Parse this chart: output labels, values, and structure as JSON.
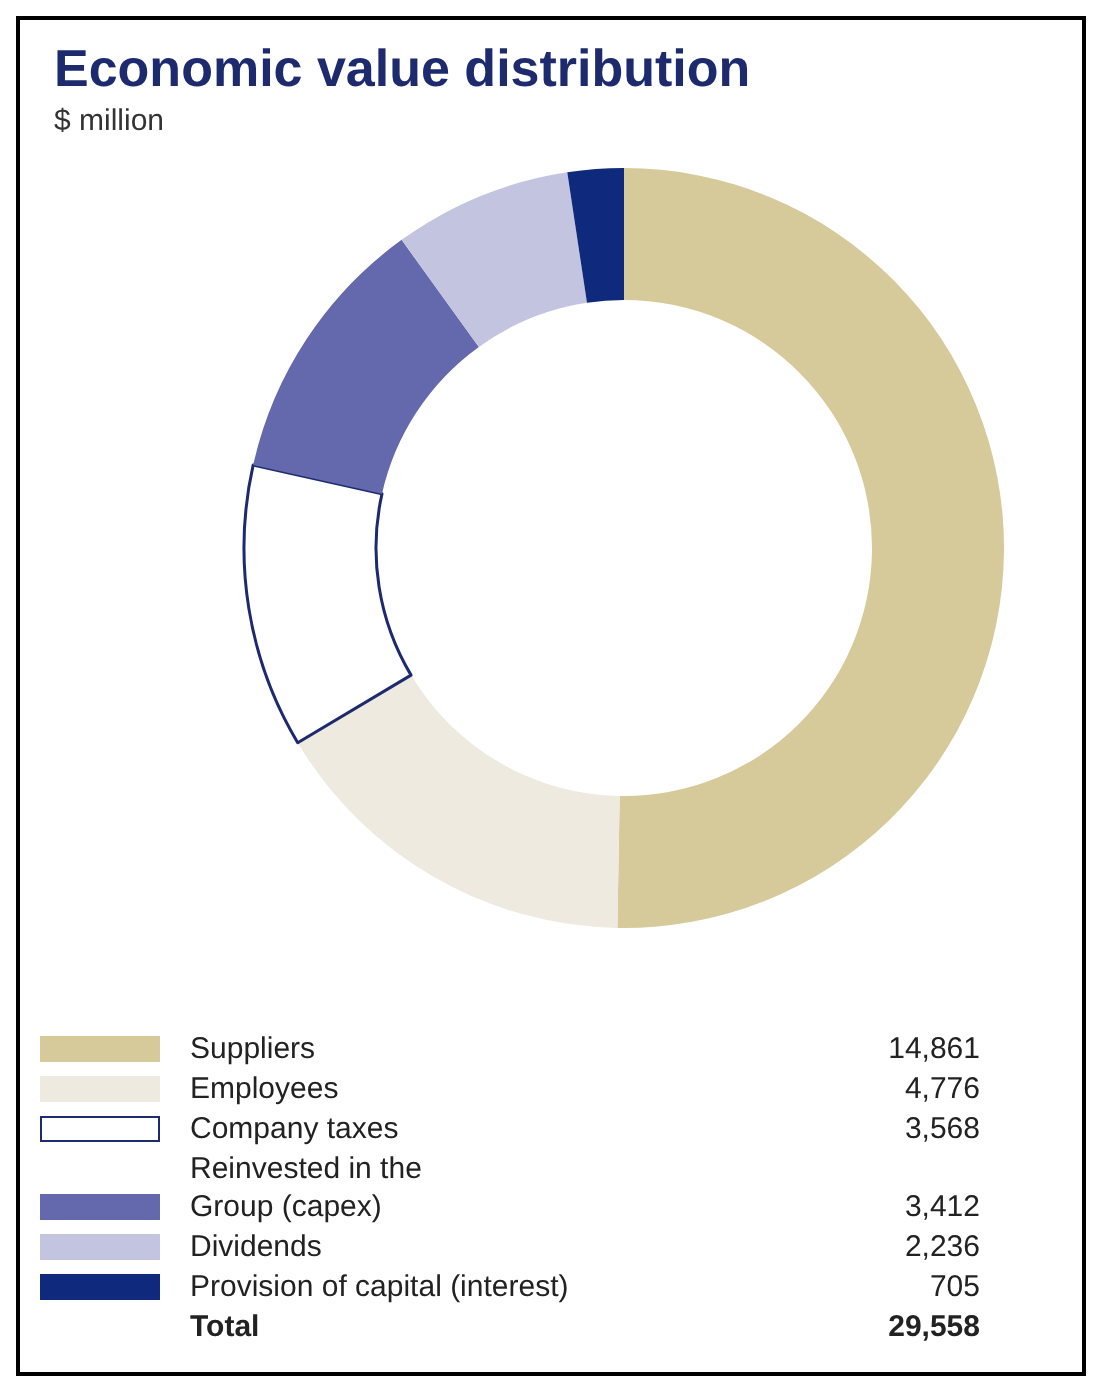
{
  "chart_data": {
    "type": "donut",
    "title": "Economic value distribution",
    "subtitle": "$ million",
    "categories": [
      "Suppliers",
      "Employees",
      "Company taxes",
      "Reinvested in the\nGroup (capex)",
      "Dividends",
      "Provision of capital (interest)"
    ],
    "values": [
      14861,
      4776,
      3568,
      3412,
      2236,
      705
    ],
    "colors": [
      "#d6c99a",
      "#eeeae0",
      "#ffffff",
      "#6468ad",
      "#c3c4e0",
      "#0f2a7c"
    ],
    "value_labels": [
      "14,861",
      "4,776",
      "3,568",
      "3,412",
      "2,236",
      "705"
    ],
    "legend": "bottom",
    "annotations": [
      "Total",
      "29,558"
    ]
  }
}
